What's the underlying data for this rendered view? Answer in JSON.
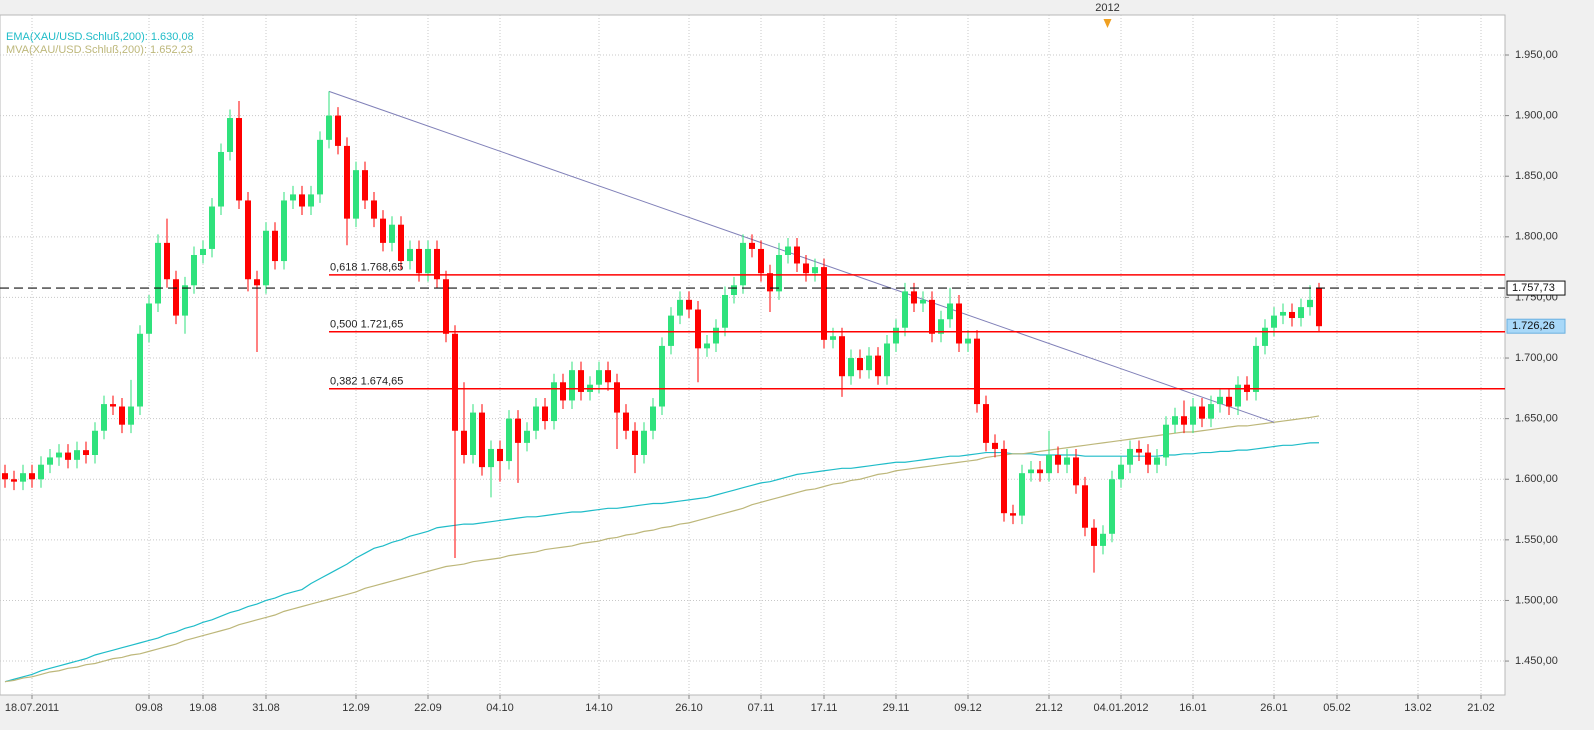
{
  "chart_data": {
    "type": "candlestick",
    "year_marker": "2012",
    "legend": [
      "EMA(XAU/USD.Schluß,200): 1.630,08",
      "MVA(XAU/USD.Schluß,200): 1.652,23"
    ],
    "categories": [
      null,
      null,
      null,
      "18.07.2011",
      null,
      null,
      null,
      null,
      null,
      null,
      null,
      null,
      null,
      null,
      null,
      null,
      "09.08",
      null,
      null,
      null,
      null,
      null,
      "19.08",
      null,
      null,
      null,
      null,
      null,
      null,
      "31.08",
      null,
      null,
      null,
      null,
      null,
      null,
      null,
      null,
      null,
      "12.09",
      null,
      null,
      null,
      null,
      null,
      null,
      null,
      "22.09",
      null,
      null,
      null,
      null,
      null,
      null,
      null,
      "04.10",
      null,
      null,
      null,
      null,
      null,
      null,
      null,
      null,
      null,
      null,
      "14.10",
      null,
      null,
      null,
      null,
      null,
      null,
      null,
      null,
      null,
      "26.10",
      null,
      null,
      null,
      null,
      null,
      null,
      null,
      "07.11",
      null,
      null,
      null,
      null,
      null,
      null,
      "17.11",
      null,
      null,
      null,
      null,
      null,
      null,
      null,
      "29.11",
      null,
      null,
      null,
      null,
      null,
      null,
      null,
      "09.12",
      null,
      null,
      null,
      null,
      null,
      null,
      null,
      null,
      "21.12",
      null,
      null,
      null,
      null,
      null,
      null,
      null,
      "04.01.2012",
      null,
      null,
      null,
      null,
      null,
      null,
      null,
      "16.01",
      null,
      null,
      null,
      null,
      null,
      null,
      null,
      null,
      "26.01",
      null,
      null,
      null,
      null,
      null,
      null,
      "05.02",
      null,
      null,
      null,
      null,
      null,
      null,
      null,
      null,
      "13.02",
      null,
      null,
      null,
      null,
      null,
      null,
      "21.02",
      null
    ],
    "open": [
      1605,
      1600,
      1598,
      1605,
      1600,
      1612,
      1618,
      1622,
      1616,
      1624,
      1620,
      1640,
      1662,
      1660,
      1645,
      1660,
      1720,
      1745,
      1795,
      1765,
      1735,
      1760,
      1785,
      1790,
      1825,
      1870,
      1898,
      1830,
      1765,
      1760,
      1805,
      1780,
      1830,
      1835,
      1825,
      1835,
      1880,
      1900,
      1875,
      1815,
      1855,
      1830,
      1815,
      1795,
      1810,
      1780,
      1790,
      1770,
      1790,
      1765,
      1720,
      1640,
      1620,
      1655,
      1610,
      1625,
      1615,
      1650,
      1630,
      1640,
      1660,
      1648,
      1680,
      1665,
      1690,
      1672,
      1678,
      1690,
      1680,
      1655,
      1640,
      1620,
      1640,
      1660,
      1710,
      1735,
      1748,
      1740,
      1708,
      1712,
      1725,
      1752,
      1760,
      1795,
      1790,
      1770,
      1755,
      1785,
      1792,
      1778,
      1770,
      1775,
      1715,
      1718,
      1685,
      1700,
      1690,
      1702,
      1685,
      1712,
      1725,
      1755,
      1745,
      1748,
      1720,
      1732,
      1745,
      1712,
      1716,
      1662,
      1630,
      1625,
      1572,
      1570,
      1605,
      1608,
      1605,
      1620,
      1612,
      1618,
      1595,
      1560,
      1545,
      1555,
      1600,
      1612,
      1625,
      1622,
      1612,
      1618,
      1645,
      1652,
      1645,
      1660,
      1650,
      1662,
      1668,
      1660,
      1678,
      1672,
      1710,
      1725,
      1735,
      1738,
      1733,
      1742,
      1757.73,
      null,
      null,
      null,
      null,
      null,
      null,
      null,
      null,
      null,
      null,
      null,
      null,
      null,
      null,
      null,
      null,
      null,
      null,
      null
    ],
    "high": [
      1612,
      1607,
      1612,
      1612,
      1619,
      1625,
      1629,
      1629,
      1631,
      1631,
      1647,
      1669,
      1669,
      1667,
      1682,
      1727,
      1752,
      1802,
      1815,
      1772,
      1767,
      1792,
      1797,
      1832,
      1877,
      1905,
      1912,
      1837,
      1772,
      1812,
      1812,
      1837,
      1842,
      1842,
      1842,
      1887,
      1920,
      1907,
      1882,
      1862,
      1862,
      1837,
      1822,
      1817,
      1817,
      1797,
      1797,
      1797,
      1797,
      1772,
      1727,
      1680,
      1662,
      1662,
      1632,
      1632,
      1657,
      1657,
      1647,
      1667,
      1667,
      1687,
      1687,
      1697,
      1697,
      1685,
      1697,
      1697,
      1687,
      1662,
      1647,
      1647,
      1667,
      1717,
      1742,
      1755,
      1755,
      1747,
      1719,
      1732,
      1759,
      1767,
      1802,
      1802,
      1797,
      1777,
      1795,
      1799,
      1799,
      1785,
      1782,
      1782,
      1725,
      1725,
      1707,
      1707,
      1709,
      1709,
      1719,
      1732,
      1762,
      1762,
      1755,
      1755,
      1739,
      1758,
      1752,
      1723,
      1723,
      1669,
      1637,
      1632,
      1579,
      1612,
      1615,
      1615,
      1640,
      1627,
      1625,
      1625,
      1602,
      1567,
      1562,
      1607,
      1619,
      1632,
      1632,
      1629,
      1625,
      1652,
      1659,
      1665,
      1667,
      1667,
      1669,
      1675,
      1675,
      1685,
      1685,
      1717,
      1732,
      1742,
      1745,
      1745,
      1749,
      1760,
      1762,
      null,
      null,
      null,
      null,
      null,
      null,
      null,
      null,
      null,
      null,
      null,
      null,
      null,
      null,
      null,
      null,
      null,
      null,
      null
    ],
    "low": [
      1593,
      1591,
      1591,
      1593,
      1593,
      1605,
      1611,
      1609,
      1609,
      1613,
      1613,
      1633,
      1653,
      1638,
      1638,
      1653,
      1713,
      1738,
      1758,
      1728,
      1720,
      1753,
      1778,
      1783,
      1818,
      1863,
      1823,
      1755,
      1705,
      1753,
      1773,
      1773,
      1823,
      1818,
      1818,
      1828,
      1873,
      1868,
      1793,
      1808,
      1823,
      1808,
      1788,
      1788,
      1773,
      1773,
      1763,
      1763,
      1758,
      1713,
      1535,
      1613,
      1613,
      1603,
      1585,
      1598,
      1608,
      1597,
      1623,
      1633,
      1641,
      1641,
      1658,
      1658,
      1665,
      1665,
      1671,
      1673,
      1625,
      1633,
      1605,
      1613,
      1633,
      1653,
      1703,
      1728,
      1733,
      1680,
      1701,
      1705,
      1718,
      1745,
      1753,
      1783,
      1763,
      1738,
      1748,
      1778,
      1771,
      1763,
      1763,
      1708,
      1708,
      1668,
      1678,
      1683,
      1683,
      1678,
      1678,
      1705,
      1718,
      1738,
      1738,
      1713,
      1713,
      1725,
      1705,
      1705,
      1655,
      1623,
      1618,
      1565,
      1563,
      1563,
      1598,
      1598,
      1598,
      1605,
      1605,
      1588,
      1553,
      1523,
      1538,
      1548,
      1593,
      1605,
      1615,
      1605,
      1605,
      1611,
      1638,
      1638,
      1638,
      1643,
      1643,
      1655,
      1653,
      1653,
      1665,
      1665,
      1703,
      1718,
      1728,
      1726,
      1726,
      1735,
      1722,
      null,
      null,
      null,
      null,
      null,
      null,
      null,
      null,
      null,
      null,
      null,
      null,
      null,
      null,
      null,
      null,
      null,
      null,
      null
    ],
    "close": [
      1600,
      1598,
      1605,
      1600,
      1612,
      1618,
      1622,
      1616,
      1624,
      1620,
      1640,
      1662,
      1660,
      1645,
      1660,
      1720,
      1745,
      1795,
      1765,
      1735,
      1760,
      1785,
      1790,
      1825,
      1870,
      1898,
      1830,
      1765,
      1760,
      1805,
      1780,
      1830,
      1835,
      1825,
      1835,
      1880,
      1900,
      1875,
      1815,
      1855,
      1830,
      1815,
      1795,
      1810,
      1780,
      1790,
      1770,
      1790,
      1765,
      1720,
      1640,
      1620,
      1655,
      1610,
      1625,
      1615,
      1650,
      1630,
      1640,
      1660,
      1648,
      1680,
      1665,
      1690,
      1672,
      1678,
      1690,
      1680,
      1655,
      1640,
      1620,
      1640,
      1660,
      1710,
      1735,
      1748,
      1740,
      1708,
      1712,
      1725,
      1752,
      1760,
      1795,
      1790,
      1770,
      1755,
      1785,
      1792,
      1778,
      1770,
      1775,
      1715,
      1718,
      1685,
      1700,
      1690,
      1702,
      1685,
      1712,
      1725,
      1755,
      1745,
      1748,
      1720,
      1732,
      1745,
      1712,
      1716,
      1662,
      1630,
      1625,
      1572,
      1570,
      1605,
      1608,
      1605,
      1620,
      1612,
      1618,
      1595,
      1560,
      1545,
      1555,
      1600,
      1612,
      1625,
      1622,
      1612,
      1618,
      1645,
      1652,
      1645,
      1660,
      1650,
      1662,
      1668,
      1660,
      1678,
      1672,
      1710,
      1725,
      1735,
      1738,
      1733,
      1742,
      1748,
      1726.26,
      null,
      null,
      null,
      null,
      null,
      null,
      null,
      null,
      null,
      null,
      null,
      null,
      null,
      null,
      null,
      null,
      null,
      null,
      null
    ],
    "up_color": "#2fe27c",
    "down_color": "#ff0000",
    "series": [
      {
        "name": "EMA(XAU/USD.Schluß,200)",
        "color": "#1fbcc8",
        "values": [
          1433,
          1435,
          1437,
          1439,
          1442,
          1444,
          1446,
          1448,
          1450,
          1452,
          1455,
          1457,
          1459,
          1461,
          1463,
          1465,
          1467,
          1469,
          1472,
          1474,
          1477,
          1479,
          1482,
          1484,
          1487,
          1490,
          1492,
          1495,
          1497,
          1500,
          1502,
          1505,
          1507,
          1509,
          1514,
          1518,
          1522,
          1526,
          1530,
          1535,
          1539,
          1543,
          1545,
          1548,
          1550,
          1553,
          1555,
          1557,
          1560,
          1561,
          1562,
          1563,
          1563,
          1564,
          1565,
          1566,
          1567,
          1568,
          1569,
          1569,
          1570,
          1571,
          1572,
          1573,
          1573,
          1574,
          1575,
          1576,
          1576,
          1577,
          1578,
          1579,
          1580,
          1580,
          1581,
          1582,
          1583,
          1584,
          1585,
          1587,
          1589,
          1591,
          1593,
          1595,
          1597,
          1598,
          1600,
          1602,
          1604,
          1605,
          1606,
          1607,
          1608,
          1609,
          1609,
          1610,
          1611,
          1612,
          1613,
          1614,
          1614,
          1615,
          1616,
          1617,
          1618,
          1619,
          1619,
          1620,
          1621,
          1622,
          1622,
          1622,
          1621,
          1621,
          1621,
          1620,
          1620,
          1620,
          1620,
          1620,
          1619,
          1619,
          1619,
          1619,
          1619,
          1619,
          1619,
          1619,
          1619,
          1620,
          1620,
          1621,
          1621,
          1622,
          1622,
          1623,
          1623,
          1624,
          1624,
          1625,
          1626,
          1627,
          1628,
          1628,
          1629,
          1630,
          1630.08,
          null,
          null,
          null,
          null,
          null,
          null,
          null,
          null,
          null,
          null,
          null,
          null,
          null,
          null,
          null,
          null,
          null,
          null,
          null
        ]
      },
      {
        "name": "MVA(XAU/USD.Schluß,200)",
        "color": "#bdb77a",
        "values": [
          1433,
          1434,
          1436,
          1437,
          1439,
          1441,
          1442,
          1444,
          1445,
          1447,
          1448,
          1450,
          1452,
          1453,
          1455,
          1456,
          1458,
          1460,
          1462,
          1464,
          1467,
          1469,
          1471,
          1473,
          1475,
          1477,
          1480,
          1482,
          1484,
          1486,
          1488,
          1491,
          1493,
          1495,
          1497,
          1499,
          1501,
          1503,
          1505,
          1507,
          1510,
          1512,
          1514,
          1516,
          1518,
          1520,
          1522,
          1524,
          1526,
          1528,
          1529,
          1530,
          1532,
          1533,
          1534,
          1535,
          1537,
          1538,
          1539,
          1540,
          1542,
          1543,
          1544,
          1545,
          1547,
          1548,
          1549,
          1551,
          1552,
          1554,
          1555,
          1557,
          1558,
          1560,
          1561,
          1563,
          1564,
          1566,
          1568,
          1570,
          1572,
          1574,
          1576,
          1579,
          1581,
          1583,
          1585,
          1587,
          1589,
          1591,
          1592,
          1594,
          1596,
          1597,
          1599,
          1600,
          1602,
          1604,
          1605,
          1607,
          1608,
          1609,
          1610,
          1611,
          1612,
          1613,
          1614,
          1615,
          1616,
          1618,
          1619,
          1620,
          1621,
          1621,
          1622,
          1623,
          1624,
          1625,
          1626,
          1627,
          1628,
          1629,
          1630,
          1631,
          1632,
          1633,
          1634,
          1635,
          1636,
          1637,
          1638,
          1639,
          1639,
          1640,
          1641,
          1642,
          1643,
          1644,
          1644,
          1645,
          1646,
          1647,
          1648,
          1649,
          1650,
          1651,
          1652.23,
          null,
          null,
          null,
          null,
          null,
          null,
          null,
          null,
          null,
          null,
          null,
          null,
          null,
          null,
          null,
          null,
          null,
          null,
          null
        ]
      }
    ],
    "trendline": {
      "start": 1920,
      "end": 1647,
      "color": "#8080b8"
    },
    "fib_levels": [
      {
        "value": 1768.65,
        "label": "0,618 1.768,65"
      },
      {
        "value": 1721.65,
        "label": "0,500 1.721,65"
      },
      {
        "value": 1674.65,
        "label": "0,382 1.674,65"
      }
    ],
    "fib_color": "#ff0000",
    "reference_line": {
      "value": 1757.73,
      "label": "1.757,73"
    },
    "last_price": {
      "value": 1726.26,
      "label": "1.726,26"
    },
    "ylim": [
      1422,
      1983
    ],
    "yticks": [
      {
        "value": 1450,
        "label": "1.450,00"
      },
      {
        "value": 1500,
        "label": "1.500,00"
      },
      {
        "value": 1550,
        "label": "1.550,00"
      },
      {
        "value": 1600,
        "label": "1.600,00"
      },
      {
        "value": 1650,
        "label": "1.650,00"
      },
      {
        "value": 1700,
        "label": "1.700,00"
      },
      {
        "value": 1750,
        "label": "1.750,00"
      },
      {
        "value": 1800,
        "label": "1.800,00"
      },
      {
        "value": 1850,
        "label": "1.850,00"
      },
      {
        "value": 1900,
        "label": "1.900,00"
      },
      {
        "value": 1950,
        "label": "1.950,00"
      }
    ],
    "grid": true
  }
}
